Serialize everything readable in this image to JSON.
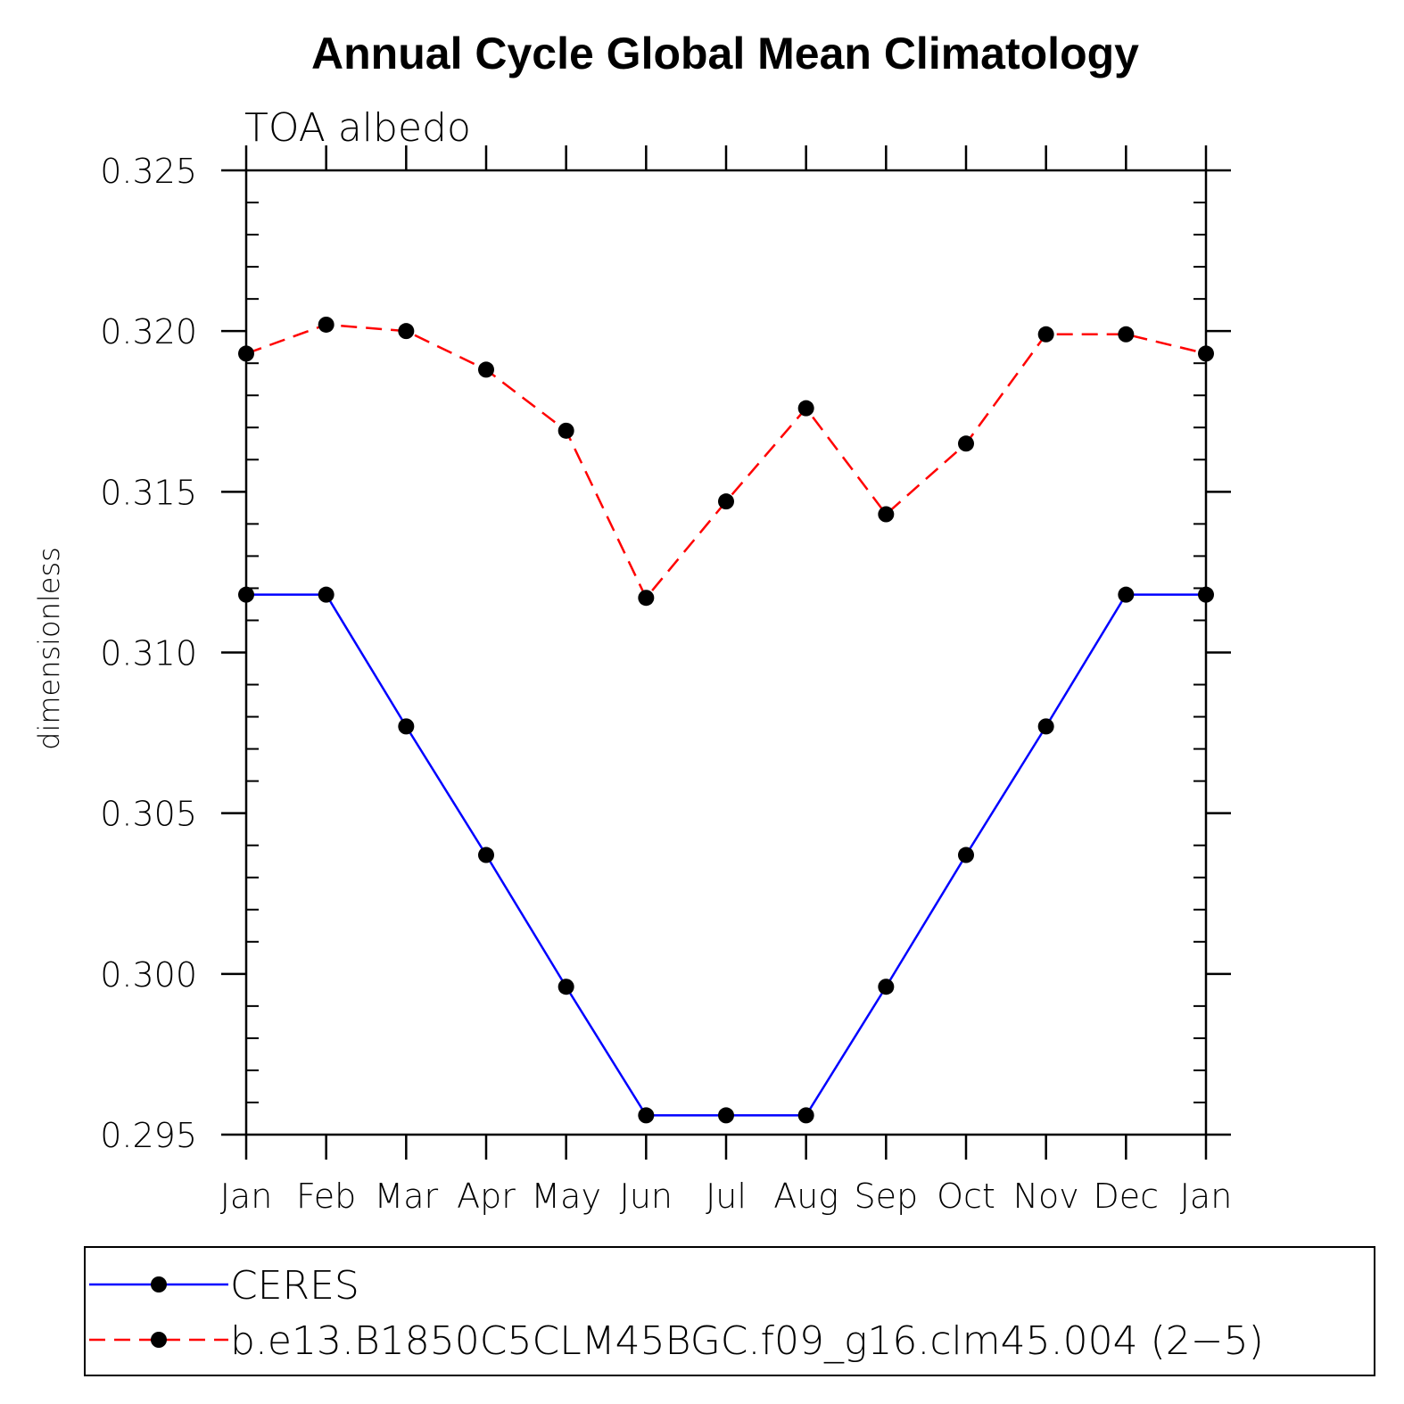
{
  "chart_data": {
    "type": "line",
    "title": "Annual Cycle Global Mean Climatology",
    "subtitle": "TOA albedo",
    "xlabel": "",
    "ylabel": "dimensionless",
    "categories": [
      "Jan",
      "Feb",
      "Mar",
      "Apr",
      "May",
      "Jun",
      "Jul",
      "Aug",
      "Sep",
      "Oct",
      "Nov",
      "Dec",
      "Jan"
    ],
    "ylim": [
      0.295,
      0.325
    ],
    "yticks": [
      "0.295",
      "0.300",
      "0.305",
      "0.310",
      "0.315",
      "0.320",
      "0.325"
    ],
    "series": [
      {
        "name": "CERES",
        "color": "#0000ff",
        "dash": "solid",
        "values": [
          0.3118,
          0.3118,
          0.3077,
          0.3037,
          0.2996,
          0.2956,
          0.2956,
          0.2956,
          0.2996,
          0.3037,
          0.3077,
          0.3118,
          0.3118
        ]
      },
      {
        "name": "b.e13.B1850C5CLM45BGC.f09_g16.clm45.004 (2−5)",
        "color": "#ff0000",
        "dash": "dashed",
        "values": [
          0.3193,
          0.3202,
          0.32,
          0.3188,
          0.3169,
          0.3117,
          0.3147,
          0.3176,
          0.3143,
          0.3165,
          0.3199,
          0.3199,
          0.3193
        ]
      }
    ],
    "grid": false,
    "legend_position": "bottom"
  }
}
